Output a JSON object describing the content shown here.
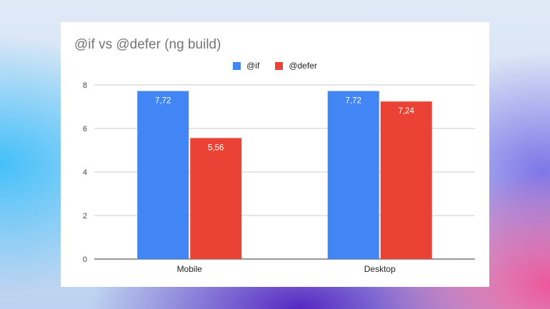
{
  "chart_data": {
    "type": "bar",
    "title": "@if vs @defer (ng build)",
    "categories": [
      "Mobile",
      "Desktop"
    ],
    "series": [
      {
        "name": "@if",
        "values": [
          7.72,
          7.72
        ],
        "labels": [
          "7,72",
          "7,72"
        ],
        "color": "#4285f4"
      },
      {
        "name": "@defer",
        "values": [
          5.56,
          7.24
        ],
        "labels": [
          "5,56",
          "7,24"
        ],
        "color": "#ea4335"
      }
    ],
    "yticks": [
      0,
      2,
      4,
      6,
      8
    ],
    "ylim": [
      0,
      8
    ],
    "grid": true,
    "legend_position": "top-center"
  }
}
